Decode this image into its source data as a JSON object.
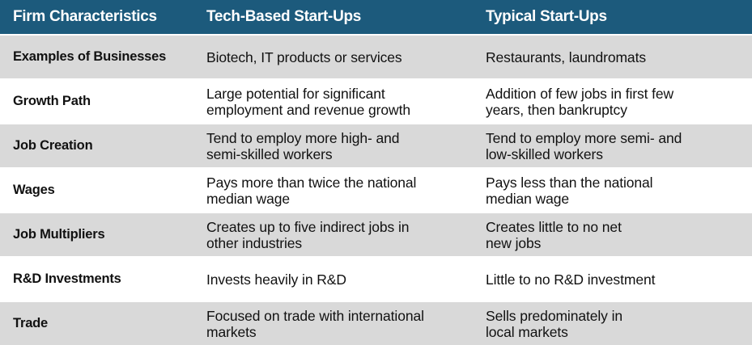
{
  "headers": [
    "Firm Characteristics",
    "Tech-Based Start-Ups",
    "Typical Start-Ups"
  ],
  "rows": [
    {
      "label": "Examples of Businesses",
      "tech": [
        "Biotech, IT products or services"
      ],
      "typical": [
        "Restaurants, laundromats"
      ]
    },
    {
      "label": "Growth Path",
      "tech": [
        "Large potential for significant",
        "employment and revenue growth"
      ],
      "typical": [
        "Addition of few jobs in first few",
        "years, then bankruptcy"
      ]
    },
    {
      "label": "Job Creation",
      "tech": [
        "Tend to employ more high- and",
        "semi-skilled workers"
      ],
      "typical": [
        "Tend to employ more semi- and",
        "low-skilled workers"
      ]
    },
    {
      "label": "Wages",
      "tech": [
        "Pays more than twice the national",
        "median wage"
      ],
      "typical": [
        "Pays less than the national",
        "median wage"
      ]
    },
    {
      "label": "Job Multipliers",
      "tech": [
        "Creates up to five indirect jobs in",
        "other industries"
      ],
      "typical": [
        "Creates little to no net",
        "new jobs"
      ]
    },
    {
      "label": "R&D Investments",
      "tech": [
        "Invests heavily in R&D"
      ],
      "typical": [
        "Little to no R&D investment"
      ]
    },
    {
      "label": "Trade",
      "tech": [
        "Focused on trade with international",
        "markets"
      ],
      "typical": [
        "Sells predominately in",
        "local markets"
      ]
    }
  ]
}
